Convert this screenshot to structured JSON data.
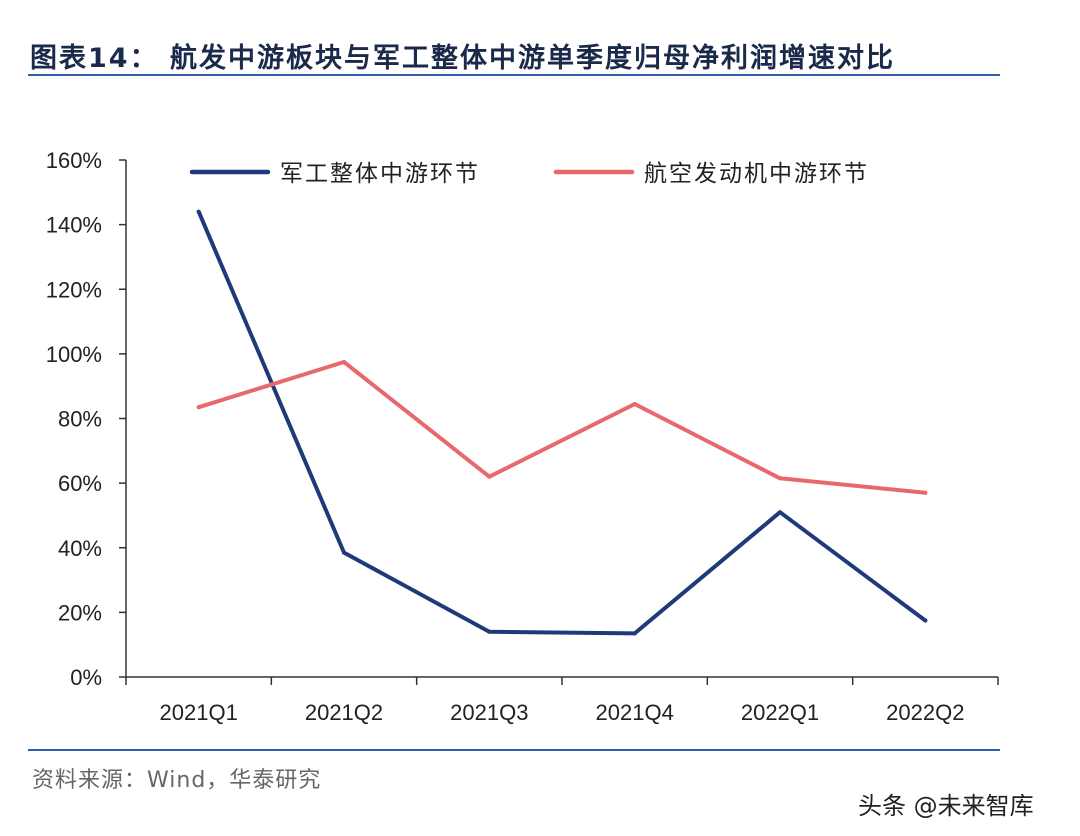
{
  "header": {
    "title": "图表14：  航发中游板块与军工整体中游单季度归母净利润增速对比"
  },
  "footer": {
    "source": "资料来源：Wind，华泰研究",
    "watermark": "头条 @未来智库"
  },
  "chart_data": {
    "type": "line",
    "title": "航发中游板块与军工整体中游单季度归母净利润增速对比",
    "categories": [
      "2021Q1",
      "2021Q2",
      "2021Q3",
      "2021Q4",
      "2022Q1",
      "2022Q2"
    ],
    "series": [
      {
        "name": "军工整体中游环节",
        "color": "#1f3a7a",
        "values": [
          144,
          38.5,
          14,
          13.5,
          51,
          17.5
        ]
      },
      {
        "name": "航空发动机中游环节",
        "color": "#e8696b",
        "values": [
          83.5,
          97.5,
          62,
          84.5,
          61.5,
          57
        ]
      }
    ],
    "ylim": [
      0,
      160
    ],
    "yticks": [
      0,
      20,
      40,
      60,
      80,
      100,
      120,
      140,
      160
    ],
    "ytick_labels": [
      "0%",
      "20%",
      "40%",
      "60%",
      "80%",
      "100%",
      "120%",
      "140%",
      "160%"
    ],
    "xlabel": "",
    "ylabel": "",
    "grid": false,
    "legend": "top"
  }
}
